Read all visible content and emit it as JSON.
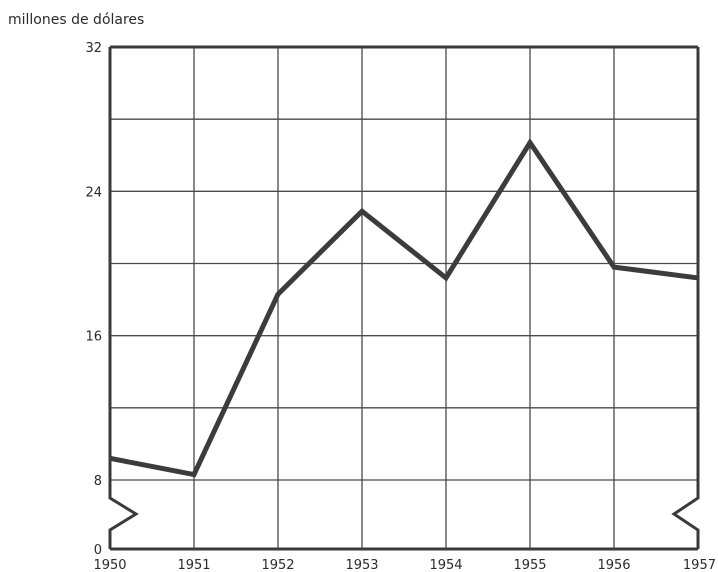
{
  "chart_data": {
    "type": "line",
    "ylabel": "millones de dólares",
    "x": [
      "1950",
      "1951",
      "1952",
      "1953",
      "1954",
      "1955",
      "1956",
      "1957"
    ],
    "series": [
      {
        "values": [
          9.2,
          8.3,
          18.3,
          22.9,
          19.2,
          26.7,
          19.8,
          19.2
        ]
      }
    ],
    "ylim": [
      0,
      32
    ],
    "yticks": [
      "0",
      "8",
      "16",
      "24",
      "32"
    ],
    "axis_break": "between 0 and 8",
    "grid": true,
    "colors": {
      "line": "#3c3c3c",
      "grid": "#4a4a4a"
    }
  }
}
